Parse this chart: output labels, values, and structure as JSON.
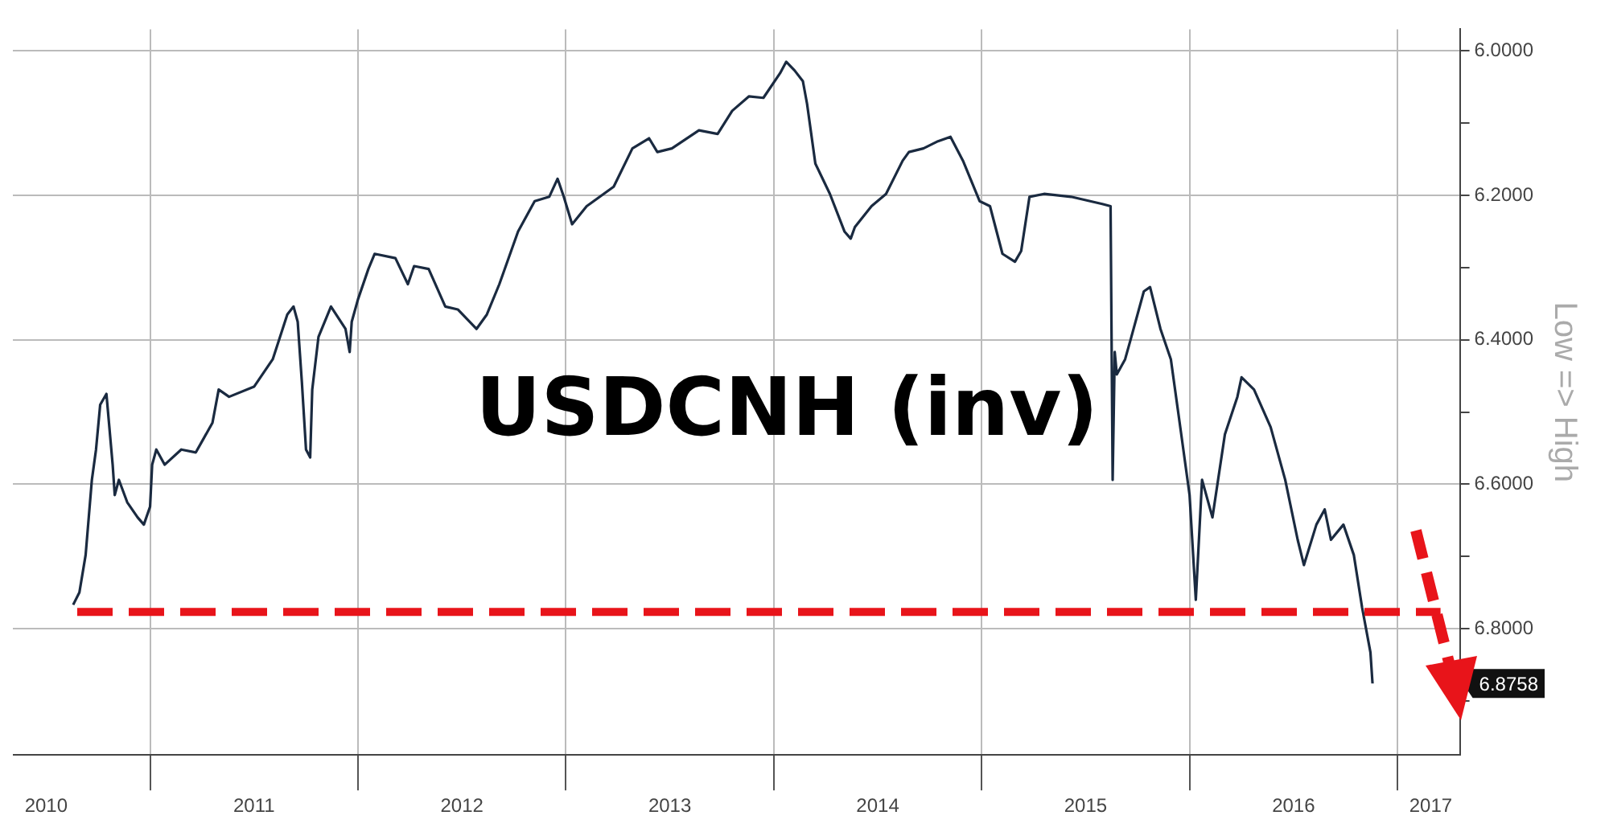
{
  "chart_data": {
    "type": "line",
    "title": "USDCNH (inv)",
    "ylabel": "Low => High",
    "x": [
      2010.63,
      2010.66,
      2010.69,
      2010.72,
      2010.74,
      2010.76,
      2010.79,
      2010.82,
      2010.83,
      2010.85,
      2010.89,
      2010.94,
      2010.97,
      2011.0,
      2011.01,
      2011.03,
      2011.07,
      2011.15,
      2011.22,
      2011.3,
      2011.33,
      2011.38,
      2011.5,
      2011.59,
      2011.66,
      2011.69,
      2011.71,
      2011.73,
      2011.75,
      2011.77,
      2011.78,
      2011.81,
      2011.87,
      2011.94,
      2011.96,
      2011.97,
      2012.0,
      2012.05,
      2012.08,
      2012.18,
      2012.24,
      2012.27,
      2012.34,
      2012.42,
      2012.48,
      2012.57,
      2012.62,
      2012.68,
      2012.77,
      2012.85,
      2012.92,
      2012.96,
      2012.99,
      2013.03,
      2013.1,
      2013.23,
      2013.32,
      2013.4,
      2013.44,
      2013.51,
      2013.64,
      2013.73,
      2013.8,
      2013.88,
      2013.95,
      2014.03,
      2014.06,
      2014.1,
      2014.14,
      2014.16,
      2014.2,
      2014.27,
      2014.34,
      2014.37,
      2014.39,
      2014.47,
      2014.54,
      2014.62,
      2014.65,
      2014.72,
      2014.79,
      2014.85,
      2014.91,
      2014.99,
      2015.04,
      2015.1,
      2015.16,
      2015.19,
      2015.23,
      2015.3,
      2015.43,
      2015.58,
      2015.62,
      2015.63,
      2015.64,
      2015.65,
      2015.69,
      2015.72,
      2015.78,
      2015.81,
      2015.86,
      2015.91,
      2015.96,
      2016.0,
      2016.03,
      2016.06,
      2016.11,
      2016.17,
      2016.23,
      2016.25,
      2016.31,
      2016.39,
      2016.46,
      2016.52,
      2016.55,
      2016.61,
      2016.65,
      2016.68,
      2016.74,
      2016.79,
      2016.83,
      2016.87,
      2016.88
    ],
    "series": [
      {
        "color": "#1a2a40",
        "values": [
          6.767,
          6.75,
          6.698,
          6.594,
          6.552,
          6.49,
          6.475,
          6.573,
          6.615,
          6.594,
          6.625,
          6.646,
          6.656,
          6.631,
          6.573,
          6.552,
          6.573,
          6.552,
          6.556,
          6.515,
          6.469,
          6.479,
          6.465,
          6.427,
          6.365,
          6.354,
          6.375,
          6.458,
          6.552,
          6.563,
          6.469,
          6.396,
          6.354,
          6.385,
          6.417,
          6.375,
          6.344,
          6.302,
          6.281,
          6.287,
          6.323,
          6.298,
          6.302,
          6.354,
          6.358,
          6.385,
          6.365,
          6.323,
          6.25,
          6.208,
          6.202,
          6.177,
          6.202,
          6.24,
          6.215,
          6.188,
          6.135,
          6.121,
          6.14,
          6.135,
          6.11,
          6.115,
          6.083,
          6.063,
          6.065,
          6.031,
          6.015,
          6.027,
          6.042,
          6.073,
          6.156,
          6.198,
          6.25,
          6.26,
          6.244,
          6.215,
          6.198,
          6.152,
          6.14,
          6.135,
          6.125,
          6.119,
          6.152,
          6.208,
          6.215,
          6.281,
          6.292,
          6.277,
          6.202,
          6.198,
          6.202,
          6.212,
          6.215,
          6.594,
          6.417,
          6.448,
          6.427,
          6.396,
          6.333,
          6.327,
          6.385,
          6.427,
          6.531,
          6.615,
          6.76,
          6.594,
          6.646,
          6.531,
          6.479,
          6.452,
          6.469,
          6.521,
          6.594,
          6.677,
          6.712,
          6.656,
          6.635,
          6.677,
          6.656,
          6.698,
          6.771,
          6.833,
          6.876
        ]
      }
    ],
    "xlim": [
      2010.34,
      2017.3
    ],
    "xticks": [
      {
        "value": 2011,
        "label": null
      },
      {
        "value": 2012,
        "label": null
      },
      {
        "value": 2013,
        "label": null
      },
      {
        "value": 2014,
        "label": null
      },
      {
        "value": 2015,
        "label": null
      },
      {
        "value": 2016,
        "label": null
      },
      {
        "value": 2017,
        "label": null
      },
      {
        "value": 2010.5,
        "label": "2010"
      },
      {
        "value": 2011.5,
        "label": "2011"
      },
      {
        "value": 2012.5,
        "label": "2012"
      },
      {
        "value": 2013.5,
        "label": "2013"
      },
      {
        "value": 2014.5,
        "label": "2014"
      },
      {
        "value": 2015.5,
        "label": "2015"
      },
      {
        "value": 2016.5,
        "label": "2016"
      },
      {
        "value": 2017.16,
        "label": "2017"
      }
    ],
    "ylim": [
      6.975,
      5.97
    ],
    "yticks": [
      {
        "value": 6,
        "label": "6.0000"
      },
      {
        "value": 6.1,
        "label": null
      },
      {
        "value": 6.2,
        "label": "6.2000"
      },
      {
        "value": 6.3,
        "label": null
      },
      {
        "value": 6.4,
        "label": "6.4000"
      },
      {
        "value": 6.5,
        "label": null
      },
      {
        "value": 6.6,
        "label": "6.6000"
      },
      {
        "value": 6.7,
        "label": null
      },
      {
        "value": 6.8,
        "label": "6.8000"
      },
      {
        "value": 6.9,
        "label": null
      }
    ],
    "ref_lines": [
      {
        "axis": "y",
        "value": 6.777,
        "color": "#e8141a",
        "line_style": "dashed"
      }
    ],
    "annotations": [
      "6.8758"
    ],
    "grid": true,
    "marker": "none",
    "line_style": "solid",
    "legend": false
  }
}
